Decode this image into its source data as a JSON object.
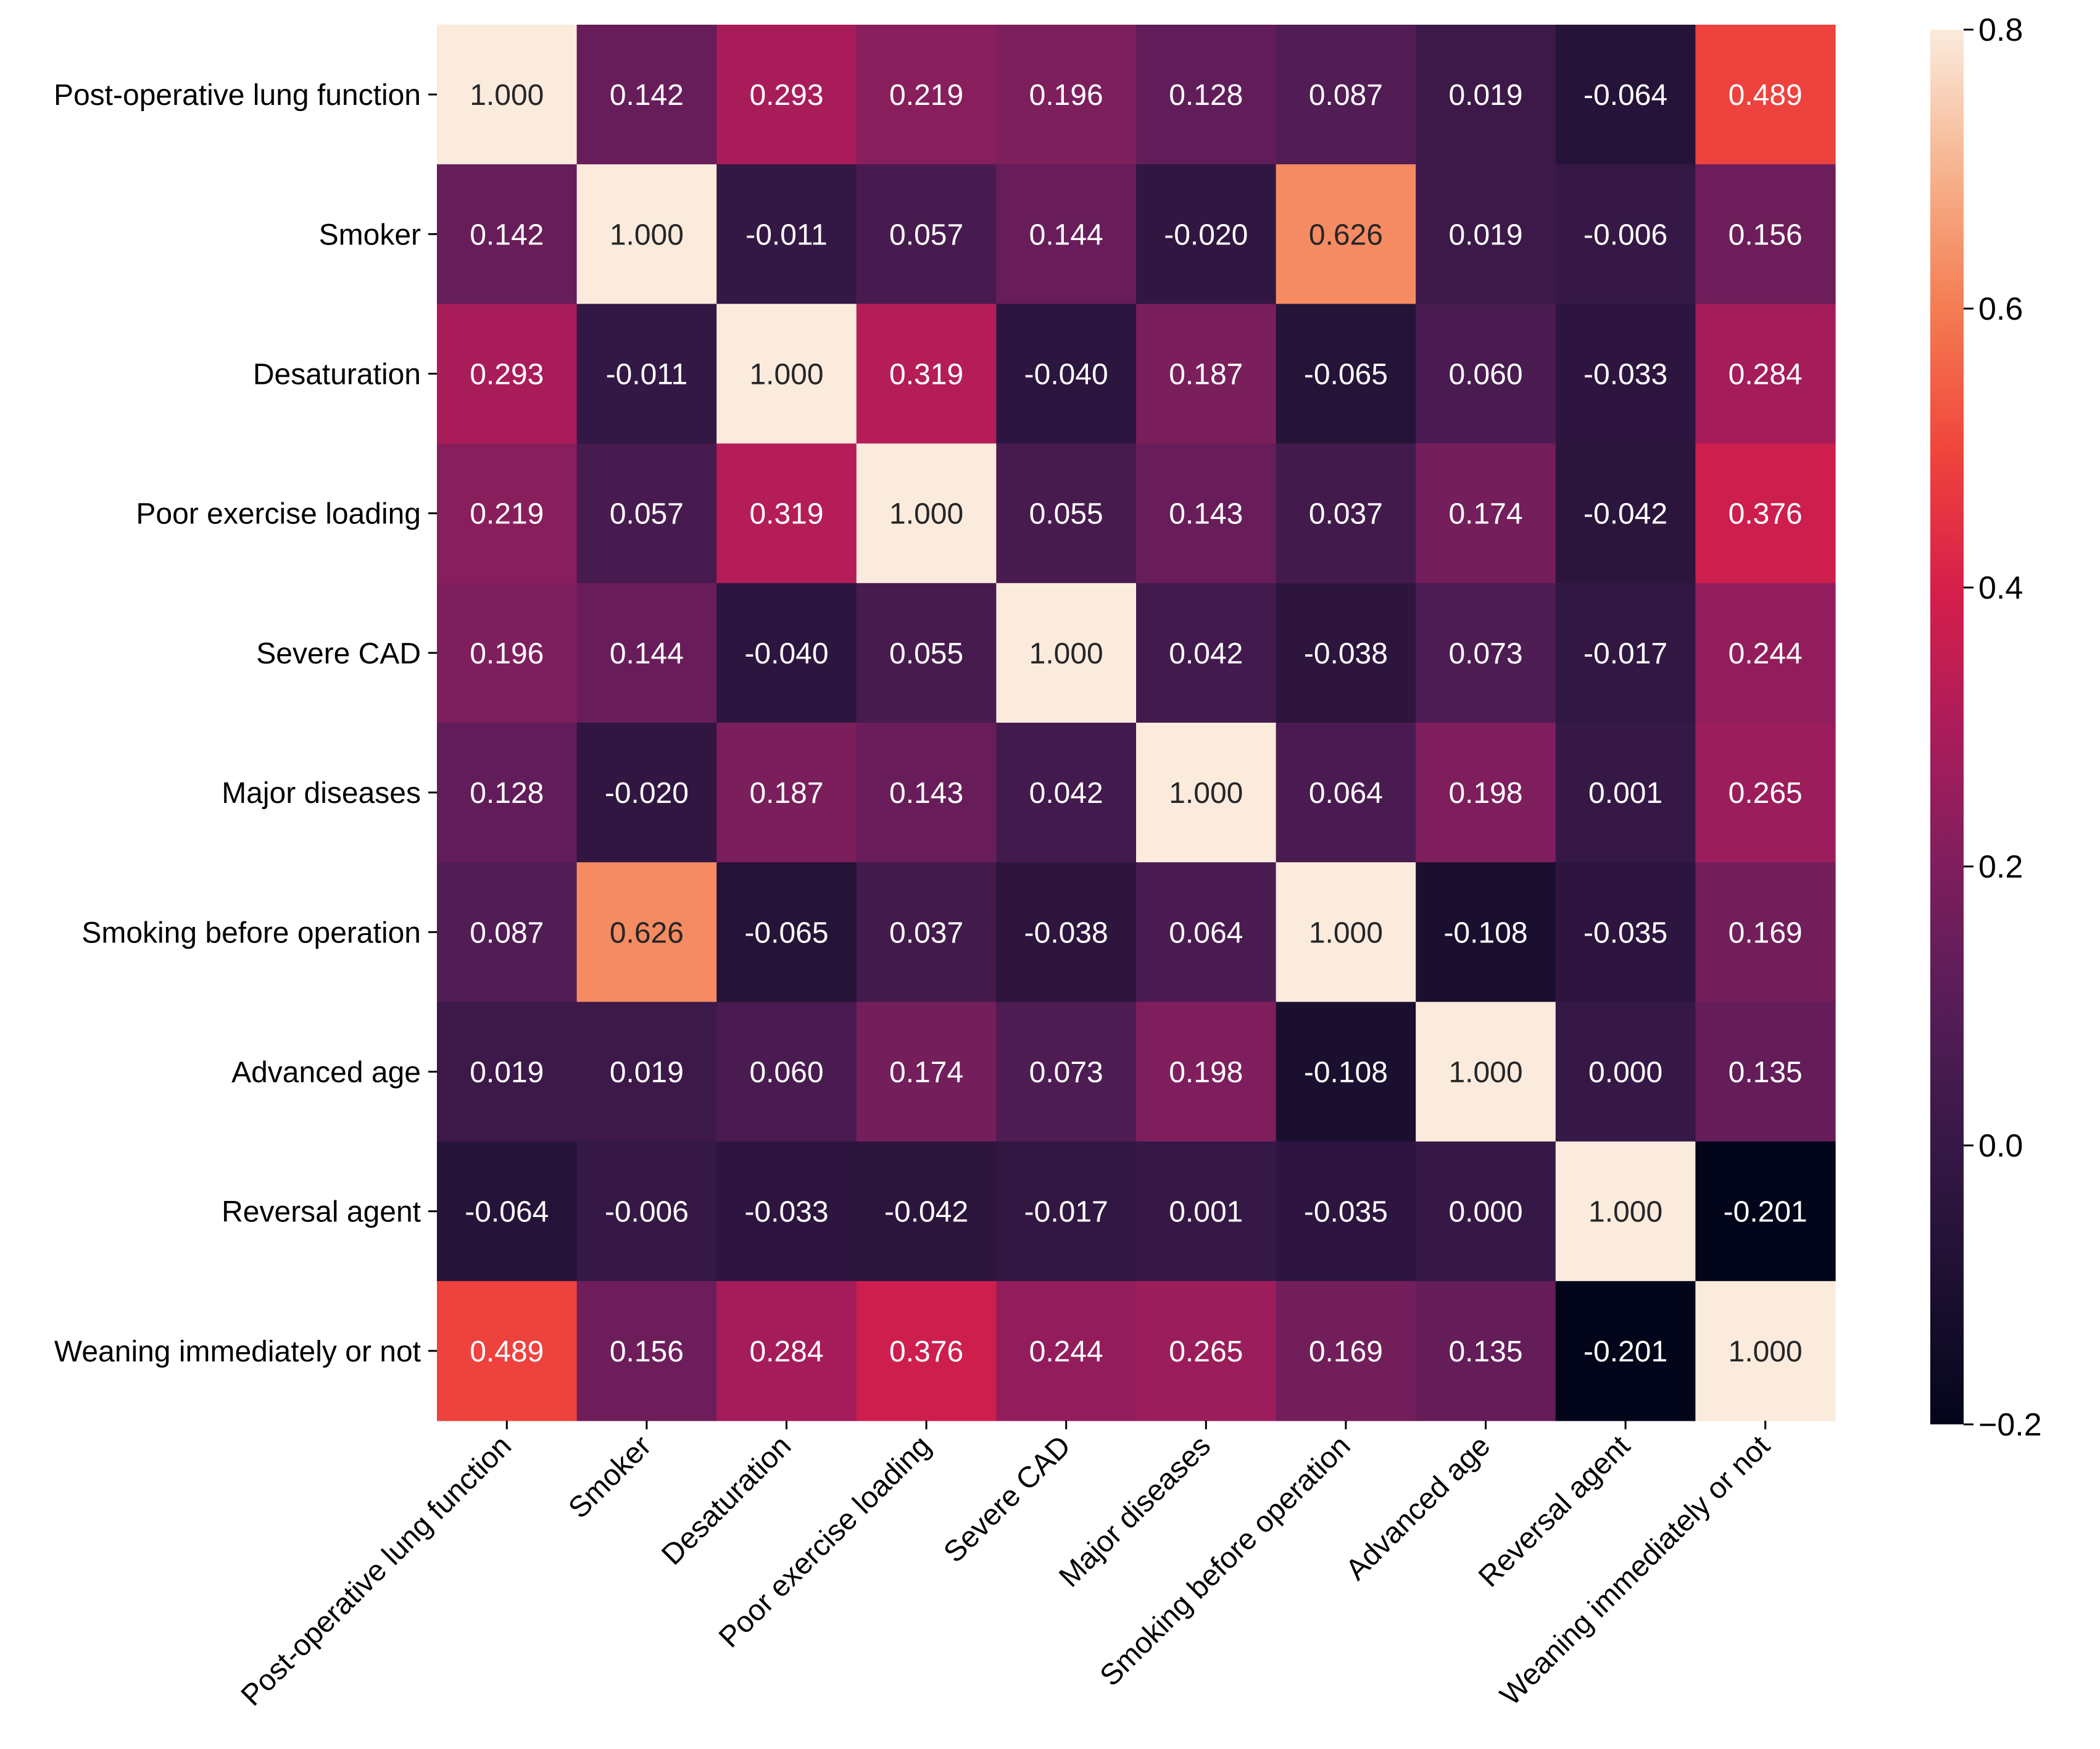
{
  "chart_data": {
    "type": "heatmap",
    "title": "",
    "xlabel": "",
    "ylabel": "",
    "labels": [
      "Post-operative lung function",
      "Smoker",
      "Desaturation",
      "Poor exercise loading",
      "Severe CAD",
      "Major diseases",
      "Smoking before operation",
      "Advanced age",
      "Reversal agent",
      "Weaning immediately or not"
    ],
    "values": [
      [
        1.0,
        0.142,
        0.293,
        0.219,
        0.196,
        0.128,
        0.087,
        0.019,
        -0.064,
        0.489
      ],
      [
        0.142,
        1.0,
        -0.011,
        0.057,
        0.144,
        -0.02,
        0.626,
        0.019,
        -0.006,
        0.156
      ],
      [
        0.293,
        -0.011,
        1.0,
        0.319,
        -0.04,
        0.187,
        -0.065,
        0.06,
        -0.033,
        0.284
      ],
      [
        0.219,
        0.057,
        0.319,
        1.0,
        0.055,
        0.143,
        0.037,
        0.174,
        -0.042,
        0.376
      ],
      [
        0.196,
        0.144,
        -0.04,
        0.055,
        1.0,
        0.042,
        -0.038,
        0.073,
        -0.017,
        0.244
      ],
      [
        0.128,
        -0.02,
        0.187,
        0.143,
        0.042,
        1.0,
        0.064,
        0.198,
        0.001,
        0.265
      ],
      [
        0.087,
        0.626,
        -0.065,
        0.037,
        -0.038,
        0.064,
        1.0,
        -0.108,
        -0.035,
        0.169
      ],
      [
        0.019,
        0.019,
        0.06,
        0.174,
        0.073,
        0.198,
        -0.108,
        1.0,
        0.0,
        0.135
      ],
      [
        -0.064,
        -0.006,
        -0.033,
        -0.042,
        -0.017,
        0.001,
        -0.035,
        0.0,
        1.0,
        -0.201
      ],
      [
        0.489,
        0.156,
        0.284,
        0.376,
        0.244,
        0.265,
        0.169,
        0.135,
        -0.201,
        1.0
      ]
    ],
    "value_format": "3 decimals",
    "colormap": "rocket",
    "vmin": -0.2,
    "vmax": 0.8,
    "colorbar": {
      "ticks": [
        "0.8",
        "0.6",
        "0.4",
        "0.2",
        "0.0",
        "−0.2"
      ],
      "tick_values": [
        0.8,
        0.6,
        0.4,
        0.2,
        0.0,
        -0.2
      ],
      "placement": "right"
    },
    "grid": false,
    "legend": "none"
  }
}
